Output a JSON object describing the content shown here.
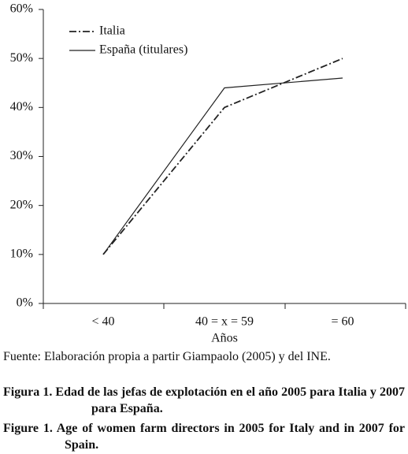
{
  "chart_data": {
    "type": "line",
    "x_label": "Años",
    "categories": [
      "< 40",
      "40 = x = 59",
      "= 60"
    ],
    "series": [
      {
        "name": "Italia",
        "color": "#222222",
        "line_style": "dashed",
        "values": [
          10,
          40,
          50
        ]
      },
      {
        "name": "España (titulares)",
        "color": "#222222",
        "line_style": "solid",
        "values": [
          10,
          44,
          46
        ]
      }
    ],
    "ylim": [
      0,
      60
    ],
    "yticks": [
      {
        "value": 0,
        "label": "0%"
      },
      {
        "value": 10,
        "label": "10%"
      },
      {
        "value": 20,
        "label": "20%"
      },
      {
        "value": 30,
        "label": "30%"
      },
      {
        "value": 40,
        "label": "40%"
      },
      {
        "value": 50,
        "label": "50%"
      },
      {
        "value": 60,
        "label": "60%"
      }
    ],
    "legend": "upper left"
  },
  "source": "Fuente: Elaboración propia a partir Giampaolo (2005) y del INE.",
  "captions": [
    "Figura 1. Edad de las jefas de explotación en el año 2005 para Italia y 2007 para España.",
    "Figure 1. Age of women farm directors in 2005 for Italy and in 2007 for Spain."
  ]
}
